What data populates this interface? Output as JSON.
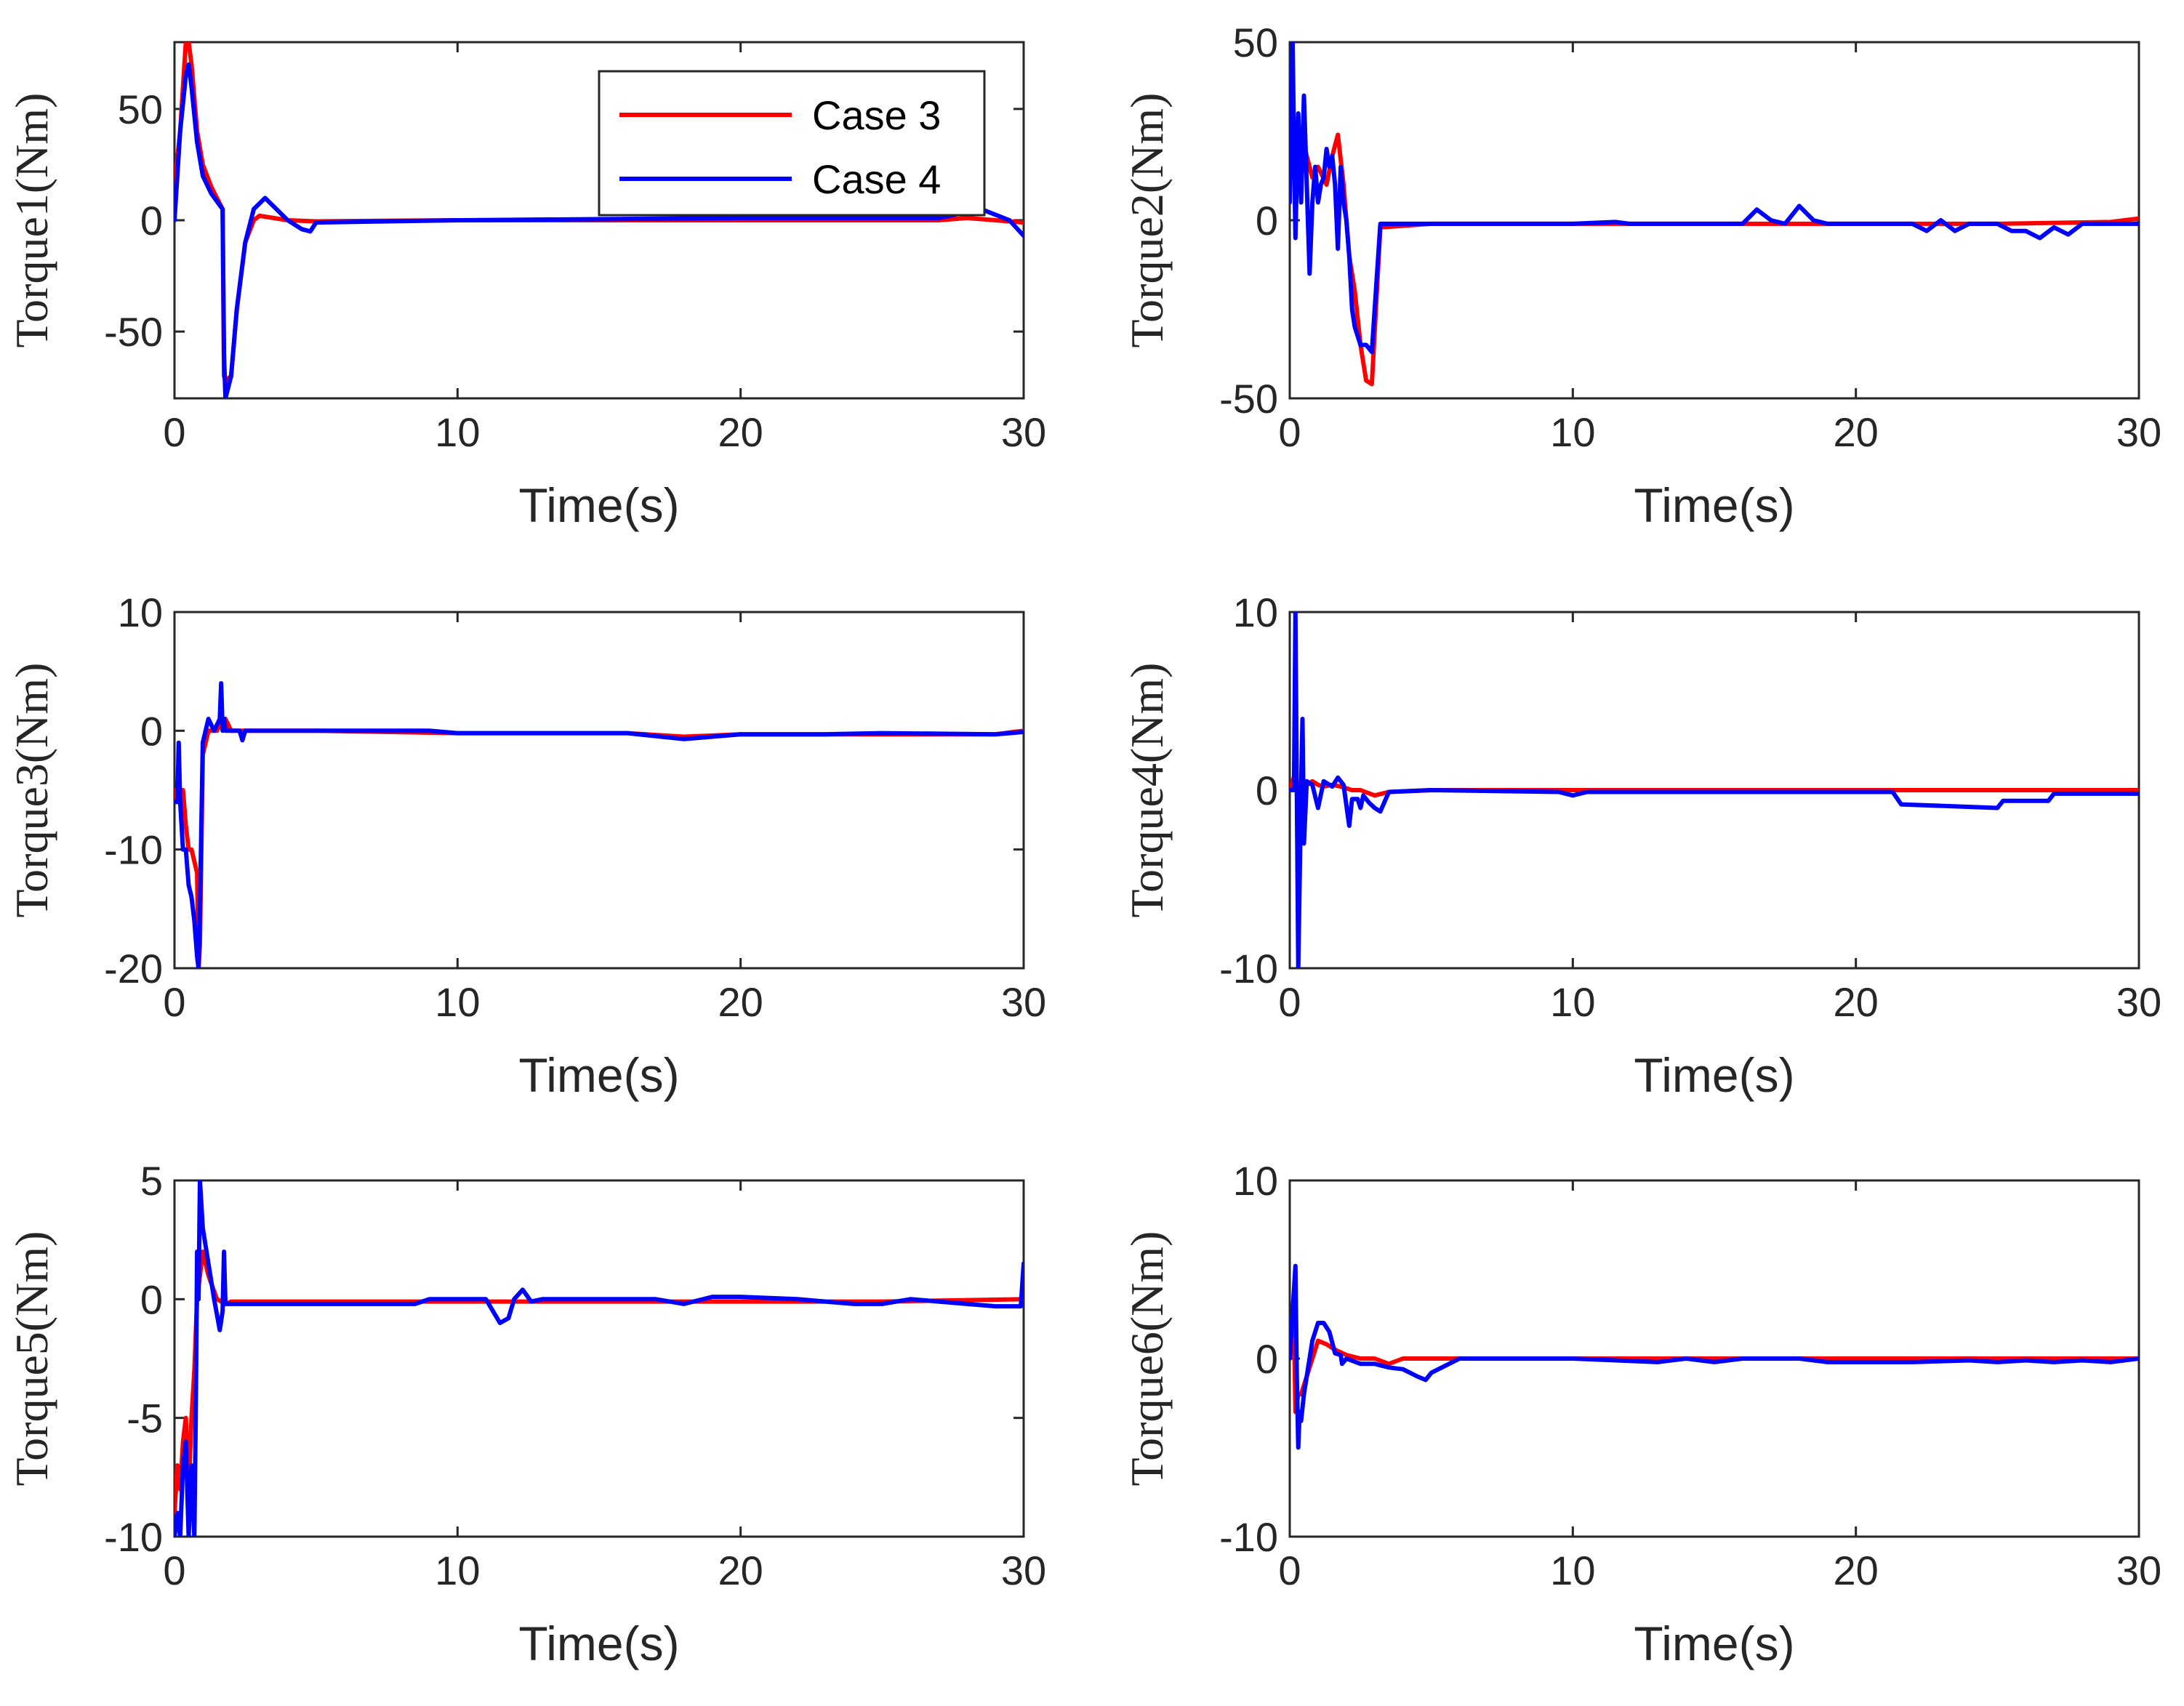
{
  "chart_data": [
    {
      "type": "line",
      "title": "",
      "xlabel": "Time(s)",
      "ylabel": "Torque1(Nm)",
      "xlim": [
        0,
        30
      ],
      "ylim": [
        -80,
        80
      ],
      "xticks": [
        0,
        10,
        20,
        30
      ],
      "yticks": [
        -50,
        0,
        50
      ],
      "legend": {
        "location": "top-right",
        "entries": [
          "Case 3",
          "Case 4"
        ]
      },
      "series": [
        {
          "name": "Case 3",
          "color": "#ff0000",
          "x": [
            0,
            0.2,
            0.4,
            0.5,
            0.6,
            0.8,
            1.0,
            1.3,
            1.7,
            1.75,
            1.8,
            2.0,
            2.2,
            2.5,
            2.8,
            3.0,
            3.5,
            4.0,
            5.0,
            10,
            20,
            25,
            27,
            28,
            29,
            30
          ],
          "y": [
            15,
            40,
            80,
            80,
            70,
            40,
            25,
            15,
            5,
            -70,
            -72,
            -70,
            -40,
            -10,
            0,
            2,
            1,
            0,
            -0.5,
            0,
            0,
            0,
            0,
            1,
            0,
            -1
          ]
        },
        {
          "name": "Case 4",
          "color": "#0000ff",
          "x": [
            0,
            0.2,
            0.4,
            0.5,
            0.6,
            0.8,
            1.0,
            1.3,
            1.7,
            1.75,
            1.8,
            2.0,
            2.2,
            2.5,
            2.8,
            3.2,
            3.6,
            4.0,
            4.5,
            4.8,
            5.0,
            10,
            20,
            25,
            27,
            28.5,
            29.5,
            30
          ],
          "y": [
            0,
            40,
            65,
            70,
            60,
            35,
            20,
            12,
            5,
            -60,
            -80,
            -70,
            -40,
            -10,
            5,
            10,
            5,
            0,
            -4,
            -5,
            -1,
            0,
            1,
            1,
            1,
            5,
            0,
            -7
          ]
        }
      ]
    },
    {
      "type": "line",
      "title": "",
      "xlabel": "Time(s)",
      "ylabel": "Torque2(Nm)",
      "xlim": [
        0,
        30
      ],
      "ylim": [
        -50,
        50
      ],
      "xticks": [
        0,
        10,
        20,
        30
      ],
      "yticks": [
        -50,
        0,
        50
      ],
      "series": [
        {
          "name": "Case 3",
          "color": "#ff0000",
          "x": [
            0,
            0.2,
            0.4,
            0.6,
            0.8,
            1.0,
            1.3,
            1.5,
            1.7,
            1.9,
            2.1,
            2.3,
            2.5,
            2.7,
            2.9,
            3.2,
            5,
            10,
            16,
            20,
            25,
            29,
            30
          ],
          "y": [
            12,
            15,
            25,
            18,
            12,
            15,
            10,
            18,
            24,
            10,
            -10,
            -20,
            -35,
            -45,
            -46,
            -2,
            -1,
            -1,
            -1,
            -1,
            -1,
            -0.5,
            0.5
          ]
        },
        {
          "name": "Case 4",
          "color": "#0000ff",
          "x": [
            0,
            0.1,
            0.2,
            0.3,
            0.4,
            0.5,
            0.6,
            0.7,
            0.8,
            0.9,
            1.0,
            1.1,
            1.2,
            1.3,
            1.4,
            1.5,
            1.6,
            1.7,
            1.8,
            1.9,
            2.0,
            2.1,
            2.2,
            2.3,
            2.5,
            2.7,
            2.9,
            3.2,
            5,
            10,
            11.5,
            12,
            16,
            16.5,
            17.0,
            17.5,
            18.0,
            18.5,
            19,
            22,
            22.5,
            23.0,
            23.5,
            24,
            25,
            25.5,
            26,
            26.5,
            27,
            27.5,
            28,
            30
          ],
          "y": [
            5,
            50,
            -5,
            30,
            5,
            35,
            10,
            -15,
            5,
            15,
            5,
            10,
            12,
            20,
            15,
            18,
            10,
            -8,
            15,
            5,
            0,
            -10,
            -25,
            -30,
            -35,
            -35,
            -37,
            -1,
            -1,
            -1,
            -0.5,
            -1,
            -1,
            3,
            0,
            -1,
            4,
            0,
            -1,
            -1,
            -3,
            0,
            -3,
            -1,
            -1,
            -3,
            -3,
            -5,
            -2,
            -4,
            -1,
            -1
          ]
        }
      ]
    },
    {
      "type": "line",
      "title": "",
      "xlabel": "Time(s)",
      "ylabel": "Torque3(Nm)",
      "xlim": [
        0,
        30
      ],
      "ylim": [
        -20,
        10
      ],
      "xticks": [
        0,
        10,
        20,
        30
      ],
      "yticks": [
        -20,
        -10,
        0,
        10
      ],
      "series": [
        {
          "name": "Case 3",
          "color": "#ff0000",
          "x": [
            0,
            0.1,
            0.2,
            0.3,
            0.4,
            0.5,
            0.6,
            0.7,
            0.8,
            0.85,
            0.9,
            1.0,
            1.2,
            1.5,
            1.7,
            1.8,
            2.0,
            2.2,
            2.5,
            5,
            10,
            16,
            18,
            20,
            25,
            29,
            30
          ],
          "y": [
            -5,
            -6,
            -5,
            -5,
            -8,
            -10,
            -10,
            -11,
            -12,
            -20,
            -18,
            -2,
            0,
            0,
            1,
            1,
            0,
            0,
            0,
            0,
            -0.2,
            -0.2,
            -0.5,
            -0.3,
            -0.3,
            -0.3,
            0
          ]
        },
        {
          "name": "Case 4",
          "color": "#0000ff",
          "x": [
            0,
            0.1,
            0.15,
            0.2,
            0.3,
            0.4,
            0.5,
            0.6,
            0.7,
            0.8,
            0.85,
            0.9,
            1.0,
            1.2,
            1.4,
            1.6,
            1.65,
            1.7,
            1.75,
            1.8,
            2.0,
            2.3,
            2.4,
            2.5,
            5,
            9,
            10,
            16,
            18,
            19,
            20,
            23,
            25,
            29,
            30
          ],
          "y": [
            -6,
            -6,
            -1,
            -6,
            -10,
            -10,
            -13,
            -14,
            -16,
            -19,
            -20,
            -15,
            -1,
            1,
            0,
            1,
            4,
            0,
            1,
            0,
            0,
            0,
            -0.8,
            0,
            0,
            0,
            -0.2,
            -0.2,
            -0.7,
            -0.5,
            -0.3,
            -0.3,
            -0.2,
            -0.3,
            -0.1
          ]
        }
      ]
    },
    {
      "type": "line",
      "title": "",
      "xlabel": "Time(s)",
      "ylabel": "Torque4(Nm)",
      "xlim": [
        0,
        30
      ],
      "ylim": [
        -10,
        10
      ],
      "xticks": [
        0,
        10,
        20,
        30
      ],
      "yticks": [
        -10,
        0,
        10
      ],
      "series": [
        {
          "name": "Case 3",
          "color": "#ff0000",
          "x": [
            0,
            0.2,
            0.3,
            0.4,
            0.5,
            0.6,
            0.8,
            1.0,
            1.2,
            1.5,
            1.8,
            2.0,
            2.2,
            2.5,
            3.0,
            3.5,
            5,
            10,
            20,
            30
          ],
          "y": [
            0,
            1,
            0,
            0.3,
            0,
            0.3,
            0.5,
            0.3,
            0.2,
            0.3,
            0.2,
            0.1,
            0,
            0,
            -0.3,
            -0.1,
            0,
            0,
            0,
            0
          ]
        },
        {
          "name": "Case 4",
          "color": "#0000ff",
          "x": [
            0,
            0.15,
            0.2,
            0.25,
            0.3,
            0.4,
            0.45,
            0.5,
            0.6,
            0.8,
            1.0,
            1.2,
            1.5,
            1.7,
            1.9,
            2.1,
            2.2,
            2.4,
            2.5,
            2.6,
            2.8,
            3.0,
            3.2,
            3.5,
            5,
            9.5,
            10,
            10.5,
            20,
            21.3,
            21.6,
            25,
            25.2,
            26.8,
            27,
            30
          ],
          "y": [
            0,
            0,
            10,
            0,
            -10,
            0,
            4,
            -3,
            0.5,
            0.3,
            -1,
            0.5,
            0.2,
            0.7,
            0.3,
            -2,
            -0.5,
            -0.5,
            -1,
            -0.3,
            -0.7,
            -1,
            -1.2,
            -0.1,
            0,
            -0.1,
            -0.3,
            -0.1,
            -0.1,
            -0.1,
            -0.8,
            -1,
            -0.6,
            -0.6,
            -0.2,
            -0.2
          ]
        }
      ]
    },
    {
      "type": "line",
      "title": "",
      "xlabel": "Time(s)",
      "ylabel": "Torque5(Nm)",
      "xlim": [
        0,
        30
      ],
      "ylim": [
        -10,
        5
      ],
      "xticks": [
        0,
        10,
        20,
        30
      ],
      "yticks": [
        -10,
        -5,
        0,
        5
      ],
      "series": [
        {
          "name": "Case 3",
          "color": "#ff0000",
          "x": [
            0,
            0.1,
            0.2,
            0.3,
            0.4,
            0.5,
            0.6,
            0.7,
            0.8,
            0.9,
            1.0,
            1.2,
            1.5,
            1.8,
            2.0,
            5,
            10,
            20,
            25,
            30
          ],
          "y": [
            -9,
            -7,
            -8,
            -6,
            -5,
            -8,
            -5,
            -3,
            0,
            1,
            2,
            1,
            0,
            -0.2,
            -0.1,
            -0.1,
            -0.1,
            -0.1,
            -0.1,
            0
          ]
        },
        {
          "name": "Case 4",
          "color": "#0000ff",
          "x": [
            0,
            0.1,
            0.2,
            0.3,
            0.4,
            0.5,
            0.6,
            0.7,
            0.75,
            0.8,
            0.85,
            0.9,
            1.0,
            1.2,
            1.4,
            1.6,
            1.7,
            1.75,
            1.8,
            2.0,
            5,
            8.5,
            9,
            10,
            11,
            11.5,
            11.8,
            12.0,
            12.3,
            12.6,
            13,
            17,
            18,
            19,
            20,
            22,
            24,
            25,
            26,
            27,
            28,
            29,
            29.9,
            30
          ],
          "y": [
            -10,
            -9,
            -10,
            -7,
            -6,
            -10,
            -7,
            -10,
            -5,
            2,
            0,
            5,
            3,
            1.5,
            0,
            -1.3,
            -0.5,
            2,
            -0.2,
            -0.2,
            -0.2,
            -0.2,
            0,
            0,
            0,
            -1,
            -0.8,
            0,
            0.4,
            -0.1,
            0,
            0,
            -0.2,
            0.1,
            0.1,
            0,
            -0.2,
            -0.2,
            0,
            -0.1,
            -0.2,
            -0.3,
            -0.3,
            1.5
          ]
        }
      ]
    },
    {
      "type": "line",
      "title": "",
      "xlabel": "Time(s)",
      "ylabel": "Torque6(Nm)",
      "xlim": [
        0,
        30
      ],
      "ylim": [
        -10,
        10
      ],
      "xticks": [
        0,
        10,
        20,
        30
      ],
      "yticks": [
        -10,
        0,
        10
      ],
      "series": [
        {
          "name": "Case 3",
          "color": "#ff0000",
          "x": [
            0,
            0.15,
            0.2,
            0.3,
            0.4,
            0.5,
            0.6,
            0.8,
            1.0,
            1.3,
            1.6,
            2.0,
            2.5,
            3.0,
            3.5,
            4.0,
            6,
            10,
            20,
            30
          ],
          "y": [
            0,
            2,
            -3,
            -2,
            -2,
            -1.5,
            -1,
            0,
            1,
            0.8,
            0.5,
            0.2,
            0,
            0,
            -0.3,
            0,
            0,
            0,
            0,
            0
          ]
        },
        {
          "name": "Case 4",
          "color": "#0000ff",
          "x": [
            0,
            0.2,
            0.25,
            0.3,
            0.35,
            0.4,
            0.5,
            0.6,
            0.8,
            1.0,
            1.2,
            1.4,
            1.6,
            1.8,
            1.85,
            2.0,
            2.5,
            3.0,
            3.5,
            4.0,
            4.5,
            4.8,
            5.0,
            5.5,
            6.0,
            6.5,
            8,
            10,
            13,
            14,
            15,
            16,
            18,
            19,
            22,
            24,
            25,
            26,
            27,
            28,
            29,
            30
          ],
          "y": [
            0,
            5.2,
            -1,
            -5,
            -3,
            -3.5,
            -2,
            -1,
            1,
            2,
            2,
            1.5,
            0.3,
            0.2,
            -0.3,
            0,
            -0.3,
            -0.3,
            -0.5,
            -0.6,
            -1,
            -1.2,
            -0.8,
            -0.4,
            0,
            0,
            0,
            0,
            -0.2,
            0,
            -0.2,
            0,
            0,
            -0.2,
            -0.2,
            -0.1,
            -0.2,
            -0.1,
            -0.2,
            -0.1,
            -0.2,
            0
          ]
        }
      ]
    }
  ]
}
